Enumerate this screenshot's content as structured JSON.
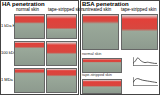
{
  "panels": [
    {
      "title": "HA penetration",
      "columns": [
        "normal skin",
        "tape-stripped skin"
      ],
      "rows": [
        "1 kDa HA",
        "100 kDa HA",
        "1 MDa HA"
      ]
    },
    {
      "title": "BSA penetration",
      "columns": [
        "untreated skin",
        "tape-stripped skin"
      ],
      "rows": [
        "normal skin",
        "tape-stripped skin"
      ]
    }
  ],
  "chart_data": [
    {
      "type": "line",
      "x": [
        0,
        1,
        2,
        3,
        4,
        5,
        6,
        7,
        8,
        9,
        10
      ],
      "values": [
        0.2,
        0.5,
        0.9,
        0.6,
        0.4,
        0.3,
        0.35,
        0.3,
        0.25,
        0.2,
        0.2
      ],
      "color": "#333333",
      "xlim": [
        0,
        10
      ],
      "ylim": [
        0,
        1
      ],
      "tick_labels": false
    },
    {
      "type": "line",
      "x": [
        0,
        1,
        2,
        3,
        4,
        5,
        6,
        7,
        8,
        9,
        10
      ],
      "values": [
        0.3,
        0.7,
        0.8,
        0.7,
        0.6,
        0.55,
        0.5,
        0.45,
        0.4,
        0.35,
        0.3
      ],
      "color": "#333333",
      "xlim": [
        0,
        10
      ],
      "ylim": [
        0,
        1
      ],
      "tick_labels": false
    }
  ]
}
